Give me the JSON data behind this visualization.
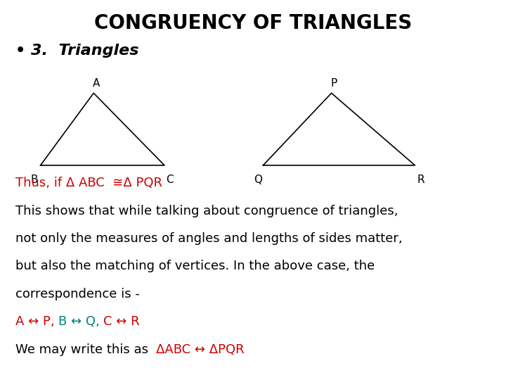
{
  "title": "CONGRUENCY OF TRIANGLES",
  "title_fontsize": 20,
  "title_fontweight": "bold",
  "title_color": "#000000",
  "background_color": "#ffffff",
  "bullet_text": "3.  Triangles",
  "bullet_fontsize": 16,
  "triangle1": {
    "B": [
      0.08,
      0.565
    ],
    "C": [
      0.325,
      0.565
    ],
    "A": [
      0.185,
      0.755
    ],
    "color": "#000000",
    "linewidth": 1.2
  },
  "triangle2": {
    "Q": [
      0.52,
      0.565
    ],
    "R": [
      0.82,
      0.565
    ],
    "P": [
      0.655,
      0.755
    ],
    "color": "#000000",
    "linewidth": 1.2
  },
  "label_fontsize": 11,
  "red_color": "#cc0000",
  "teal_color": "#008080",
  "text_fontsize": 13,
  "line1_red": "Thus, if Δ ABC  ≅Δ PQR",
  "line2": "This shows that while talking about congruence of triangles,",
  "line3": "not only the measures of angles and lengths of sides matter,",
  "line4": "but also the matching of vertices. In the above case, the",
  "line5": "correspondence is -",
  "corr_part1": "A ↔ P, ",
  "corr_part2": "B ↔ Q, ",
  "corr_part3": "C ↔ R",
  "last_black": "We may write this as  ",
  "last_red": "ΔABC ↔ ΔPQR"
}
